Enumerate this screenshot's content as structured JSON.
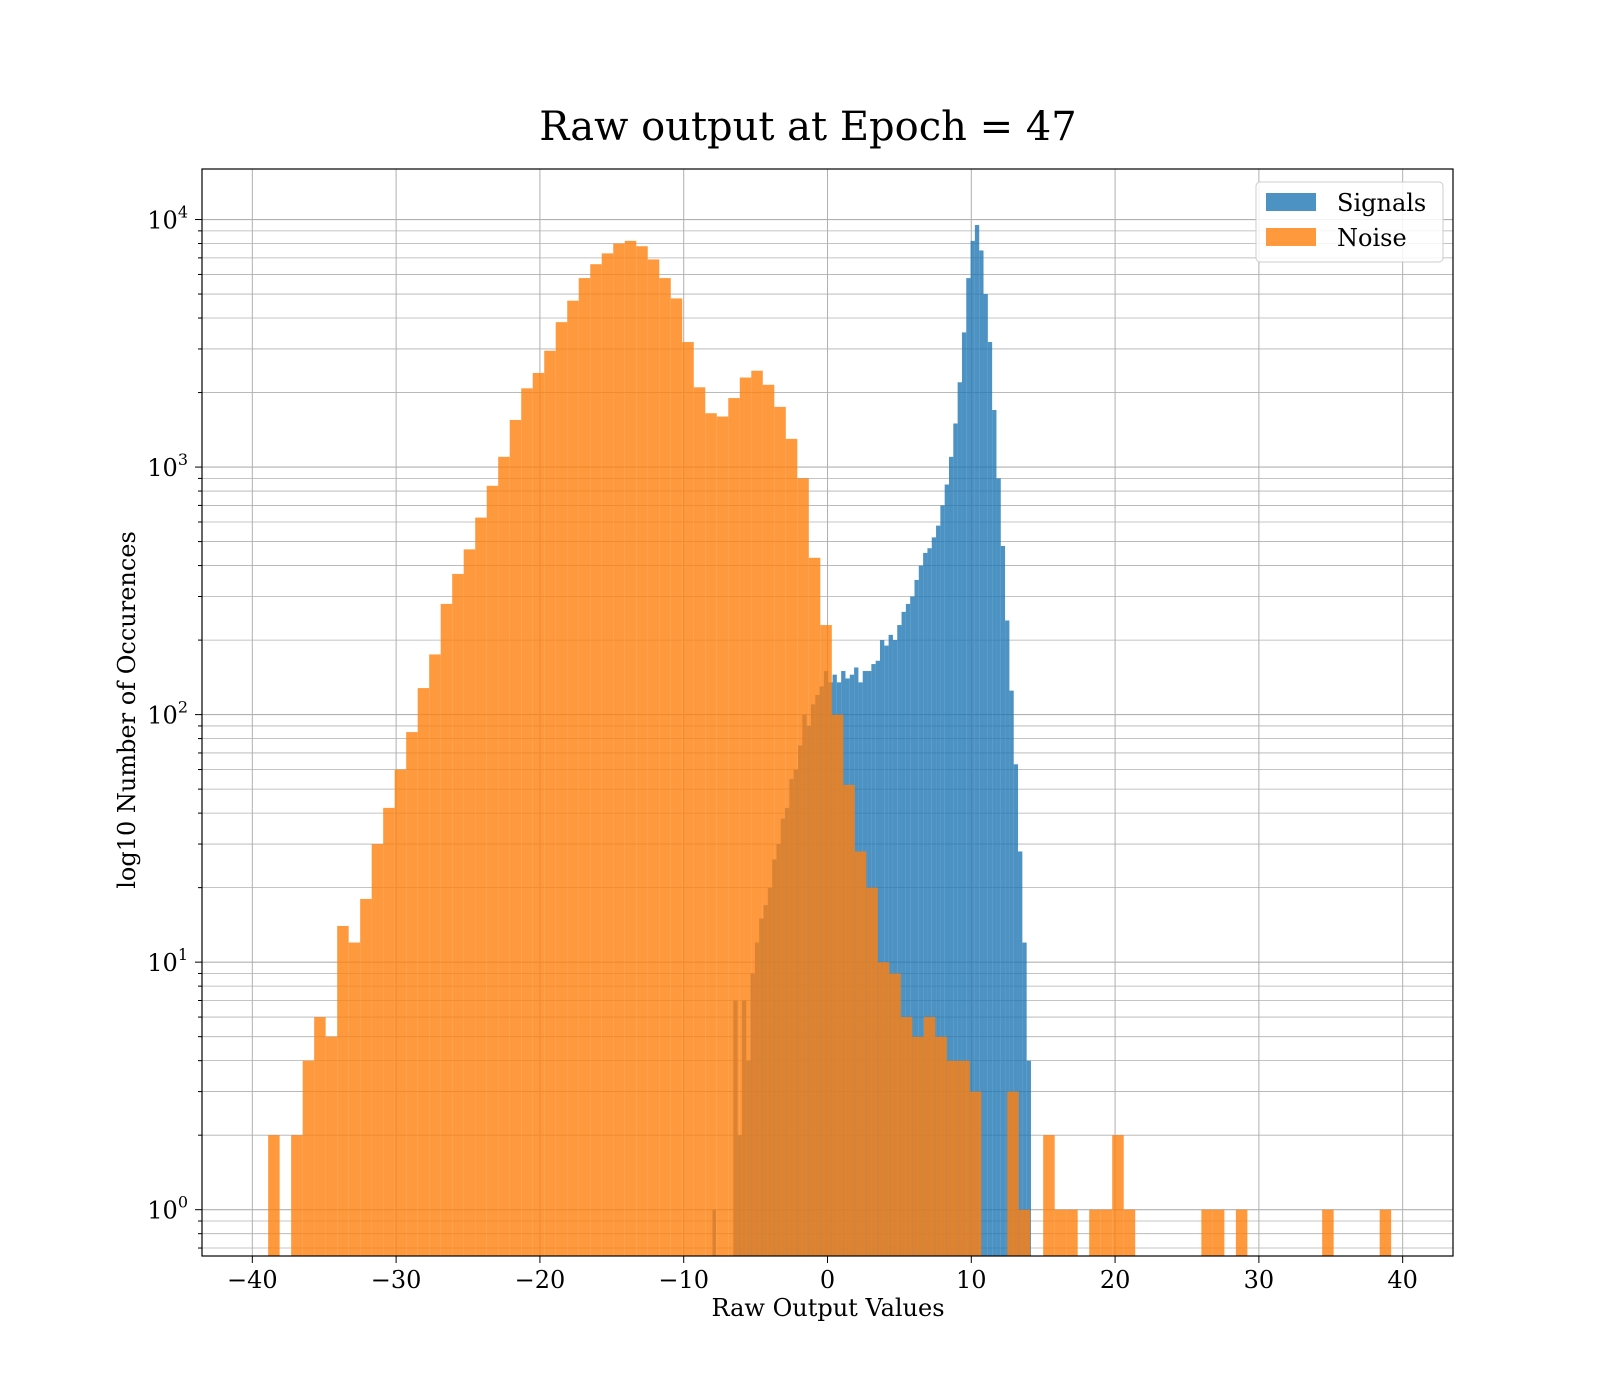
{
  "chart_data": {
    "type": "bar",
    "title": "Raw output at Epoch = 47",
    "xlabel": "Raw Output Values",
    "ylabel": "log10 Number of Occurences",
    "yscale": "log",
    "xlim": [
      -43.5,
      43.5
    ],
    "ylim": [
      0.65,
      16000
    ],
    "xticks": [
      -40,
      -30,
      -20,
      -10,
      0,
      10,
      20,
      30,
      40
    ],
    "xtick_labels": [
      "−40",
      "−30",
      "−20",
      "−10",
      "0",
      "10",
      "20",
      "30",
      "40"
    ],
    "yticks": [
      {
        "value": 1,
        "base": "10",
        "exp": "0"
      },
      {
        "value": 10,
        "base": "10",
        "exp": "1"
      },
      {
        "value": 100,
        "base": "10",
        "exp": "2"
      },
      {
        "value": 1000,
        "base": "10",
        "exp": "3"
      },
      {
        "value": 10000,
        "base": "10",
        "exp": "4"
      }
    ],
    "grid": true,
    "legend_position": "upper right",
    "series": [
      {
        "name": "Signals",
        "color": "#1f77b4",
        "alpha": 0.8,
        "bins": [
          [
            -8.0,
            -7.75,
            1
          ],
          [
            -6.55,
            -6.25,
            7
          ],
          [
            -6.25,
            -5.95,
            2
          ],
          [
            -5.95,
            -5.65,
            7
          ],
          [
            -5.65,
            -5.35,
            4
          ],
          [
            -5.35,
            -5.05,
            9
          ],
          [
            -5.05,
            -4.75,
            12
          ],
          [
            -4.75,
            -4.45,
            15
          ],
          [
            -4.45,
            -4.15,
            17
          ],
          [
            -4.15,
            -3.85,
            20
          ],
          [
            -3.85,
            -3.55,
            26
          ],
          [
            -3.55,
            -3.25,
            30
          ],
          [
            -3.25,
            -2.95,
            38
          ],
          [
            -2.95,
            -2.65,
            42
          ],
          [
            -2.65,
            -2.35,
            55
          ],
          [
            -2.35,
            -2.05,
            60
          ],
          [
            -2.05,
            -1.75,
            75
          ],
          [
            -1.75,
            -1.45,
            100
          ],
          [
            -1.45,
            -1.15,
            90
          ],
          [
            -1.15,
            -0.85,
            110
          ],
          [
            -0.85,
            -0.55,
            120
          ],
          [
            -0.55,
            -0.25,
            130
          ],
          [
            -0.25,
            0.05,
            150
          ],
          [
            0.05,
            0.35,
            135
          ],
          [
            0.35,
            0.65,
            145
          ],
          [
            0.65,
            0.95,
            135
          ],
          [
            0.95,
            1.25,
            150
          ],
          [
            1.25,
            1.55,
            140
          ],
          [
            1.55,
            1.85,
            145
          ],
          [
            1.85,
            2.15,
            155
          ],
          [
            2.15,
            2.45,
            135
          ],
          [
            2.45,
            2.75,
            150
          ],
          [
            2.75,
            3.05,
            150
          ],
          [
            3.05,
            3.35,
            160
          ],
          [
            3.35,
            3.65,
            165
          ],
          [
            3.65,
            3.95,
            200
          ],
          [
            3.95,
            4.25,
            190
          ],
          [
            4.25,
            4.55,
            210
          ],
          [
            4.55,
            4.85,
            200
          ],
          [
            4.85,
            5.15,
            230
          ],
          [
            5.15,
            5.45,
            260
          ],
          [
            5.45,
            5.75,
            280
          ],
          [
            5.75,
            6.05,
            300
          ],
          [
            6.05,
            6.35,
            350
          ],
          [
            6.35,
            6.65,
            400
          ],
          [
            6.65,
            6.95,
            450
          ],
          [
            6.95,
            7.25,
            470
          ],
          [
            7.25,
            7.55,
            520
          ],
          [
            7.55,
            7.85,
            580
          ],
          [
            7.85,
            8.15,
            700
          ],
          [
            8.15,
            8.45,
            850
          ],
          [
            8.45,
            8.75,
            1100
          ],
          [
            8.75,
            9.05,
            1500
          ],
          [
            9.05,
            9.35,
            2200
          ],
          [
            9.35,
            9.65,
            3500
          ],
          [
            9.65,
            9.95,
            5800
          ],
          [
            9.95,
            10.25,
            8200
          ],
          [
            10.25,
            10.55,
            9500
          ],
          [
            10.55,
            10.85,
            7500
          ],
          [
            10.85,
            11.15,
            5000
          ],
          [
            11.15,
            11.45,
            3200
          ],
          [
            11.45,
            11.75,
            1700
          ],
          [
            11.75,
            12.05,
            900
          ],
          [
            12.05,
            12.35,
            480
          ],
          [
            12.35,
            12.65,
            240
          ],
          [
            12.65,
            12.95,
            125
          ],
          [
            12.95,
            13.25,
            63
          ],
          [
            13.25,
            13.55,
            28
          ],
          [
            13.55,
            13.85,
            12
          ],
          [
            13.85,
            14.15,
            4
          ]
        ]
      },
      {
        "name": "Noise",
        "color": "#ff7f0e",
        "alpha": 0.8,
        "bins": [
          [
            -38.9,
            -38.1,
            2
          ],
          [
            -37.3,
            -36.5,
            2
          ],
          [
            -36.5,
            -35.7,
            4
          ],
          [
            -35.7,
            -34.9,
            6
          ],
          [
            -34.9,
            -34.1,
            5
          ],
          [
            -34.1,
            -33.3,
            14
          ],
          [
            -33.3,
            -32.5,
            12
          ],
          [
            -32.5,
            -31.7,
            18
          ],
          [
            -31.7,
            -30.9,
            30
          ],
          [
            -30.9,
            -30.1,
            42
          ],
          [
            -30.1,
            -29.3,
            60
          ],
          [
            -29.3,
            -28.5,
            85
          ],
          [
            -28.5,
            -27.7,
            128
          ],
          [
            -27.7,
            -26.9,
            175
          ],
          [
            -26.9,
            -26.1,
            280
          ],
          [
            -26.1,
            -25.3,
            370
          ],
          [
            -25.3,
            -24.5,
            465
          ],
          [
            -24.5,
            -23.7,
            625
          ],
          [
            -23.7,
            -22.9,
            840
          ],
          [
            -22.9,
            -22.1,
            1100
          ],
          [
            -22.1,
            -21.3,
            1550
          ],
          [
            -21.3,
            -20.5,
            2080
          ],
          [
            -20.5,
            -19.7,
            2400
          ],
          [
            -19.7,
            -18.9,
            2950
          ],
          [
            -18.9,
            -18.1,
            3850
          ],
          [
            -18.1,
            -17.3,
            4700
          ],
          [
            -17.3,
            -16.5,
            5800
          ],
          [
            -16.5,
            -15.7,
            6600
          ],
          [
            -15.7,
            -14.9,
            7300
          ],
          [
            -14.9,
            -14.1,
            8000
          ],
          [
            -14.1,
            -13.3,
            8200
          ],
          [
            -13.3,
            -12.5,
            7800
          ],
          [
            -12.5,
            -11.7,
            6900
          ],
          [
            -11.7,
            -10.9,
            5800
          ],
          [
            -10.9,
            -10.1,
            4800
          ],
          [
            -10.1,
            -9.3,
            3200
          ],
          [
            -9.3,
            -8.5,
            2100
          ],
          [
            -8.5,
            -7.7,
            1650
          ],
          [
            -7.7,
            -6.9,
            1600
          ],
          [
            -6.9,
            -6.1,
            1900
          ],
          [
            -6.1,
            -5.3,
            2300
          ],
          [
            -5.3,
            -4.5,
            2450
          ],
          [
            -4.5,
            -3.7,
            2150
          ],
          [
            -3.7,
            -2.9,
            1750
          ],
          [
            -2.9,
            -2.1,
            1300
          ],
          [
            -2.1,
            -1.3,
            900
          ],
          [
            -1.3,
            -0.5,
            430
          ],
          [
            -0.5,
            0.3,
            230
          ],
          [
            0.3,
            1.1,
            100
          ],
          [
            1.1,
            1.9,
            52
          ],
          [
            1.9,
            2.7,
            28
          ],
          [
            2.7,
            3.5,
            20
          ],
          [
            3.5,
            4.3,
            10
          ],
          [
            4.3,
            5.1,
            9
          ],
          [
            5.1,
            5.9,
            6
          ],
          [
            5.9,
            6.7,
            5
          ],
          [
            6.7,
            7.5,
            6
          ],
          [
            7.5,
            8.3,
            5
          ],
          [
            8.3,
            9.1,
            4
          ],
          [
            9.1,
            9.9,
            4
          ],
          [
            9.9,
            10.7,
            3
          ],
          [
            12.5,
            13.3,
            3
          ],
          [
            13.3,
            14.1,
            1
          ],
          [
            15.0,
            15.8,
            2
          ],
          [
            15.8,
            16.6,
            1
          ],
          [
            16.6,
            17.4,
            1
          ],
          [
            18.2,
            19.0,
            1
          ],
          [
            19.0,
            19.8,
            1
          ],
          [
            19.8,
            20.6,
            2
          ],
          [
            20.6,
            21.4,
            1
          ],
          [
            26.0,
            26.8,
            1
          ],
          [
            26.8,
            27.6,
            1
          ],
          [
            28.4,
            29.2,
            1
          ],
          [
            34.4,
            35.2,
            1
          ],
          [
            38.4,
            39.2,
            1
          ]
        ]
      }
    ]
  }
}
